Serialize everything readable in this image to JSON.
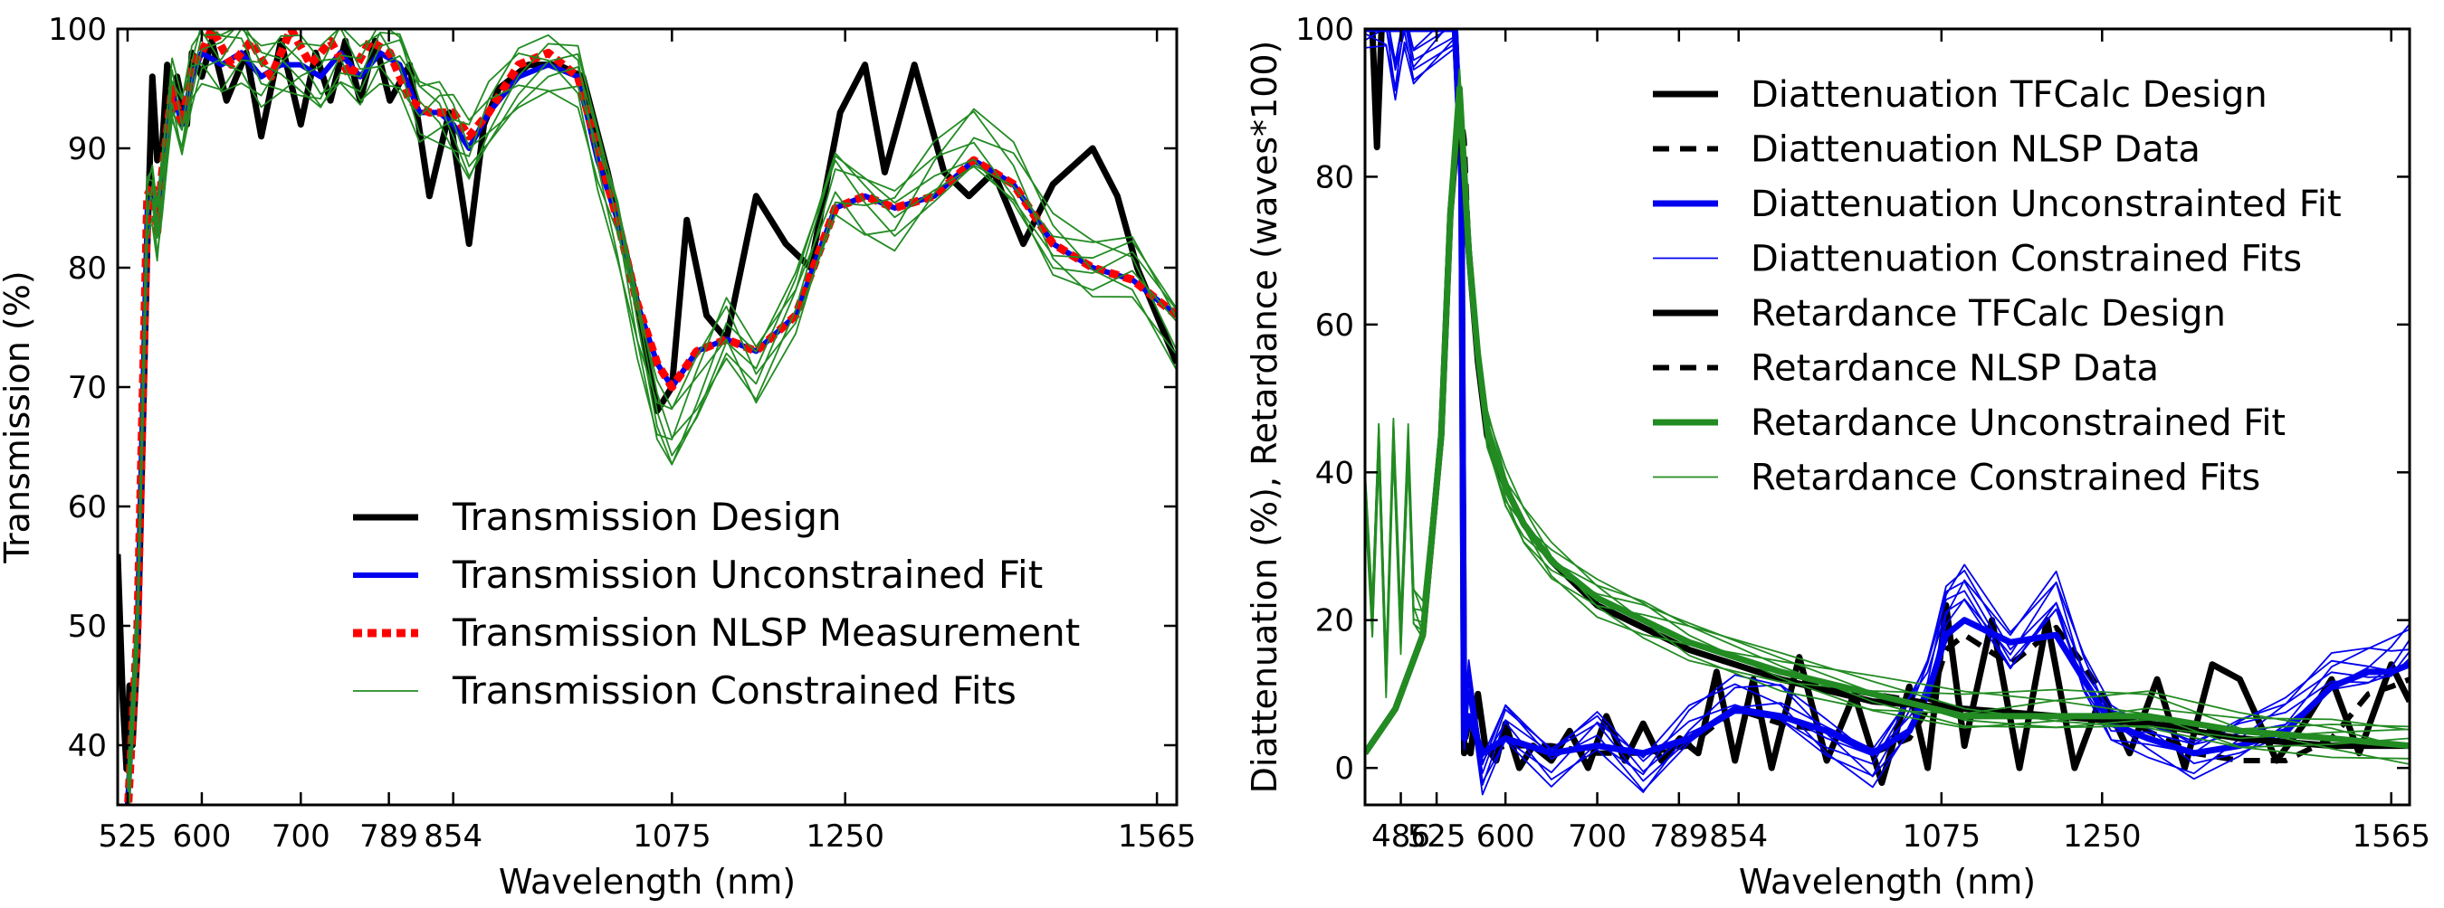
{
  "chart_data": [
    {
      "type": "line",
      "ylabel": "Transmission  (%)",
      "xlabel": "Wavelength (nm)",
      "ylim": [
        35,
        100
      ],
      "xlim": [
        515,
        1585
      ],
      "xticks": [
        "525",
        "600",
        "700",
        "789",
        "854",
        "1075",
        "1250",
        "1565"
      ],
      "xtick_values": [
        525,
        600,
        700,
        789,
        854,
        1075,
        1250,
        1565
      ],
      "yticks": [
        40,
        50,
        60,
        70,
        80,
        90,
        100
      ],
      "legend_position": "lower-center",
      "series": [
        {
          "name": "Transmission Design",
          "color": "#000000",
          "style": "solid-thick",
          "x": [
            515,
            520,
            524,
            527,
            530,
            535,
            545,
            550,
            555,
            560,
            565,
            570,
            575,
            585,
            590,
            600,
            610,
            625,
            645,
            660,
            680,
            700,
            715,
            730,
            745,
            760,
            775,
            790,
            810,
            830,
            850,
            870,
            885,
            900,
            930,
            960,
            985,
            1010,
            1040,
            1060,
            1075,
            1090,
            1110,
            1130,
            1160,
            1190,
            1215,
            1245,
            1270,
            1290,
            1320,
            1350,
            1375,
            1400,
            1430,
            1460,
            1500,
            1525,
            1545,
            1565,
            1585
          ],
          "y": [
            56,
            44,
            38,
            45,
            40,
            48,
            82,
            96,
            89,
            90,
            97,
            93,
            96,
            92,
            98,
            96,
            99,
            94,
            98,
            91,
            99,
            92,
            98,
            94,
            99,
            94,
            99,
            94,
            97,
            86,
            93,
            82,
            92,
            95,
            97,
            97,
            96,
            88,
            77,
            68,
            70,
            84,
            76,
            74,
            86,
            82,
            80,
            93,
            97,
            88,
            97,
            88,
            86,
            88,
            82,
            87,
            90,
            86,
            80,
            76,
            72
          ]
        },
        {
          "name": "Transmission Unconstrained Fit",
          "color": "#0000ee",
          "style": "solid-medium",
          "x": [
            525,
            535,
            545,
            550,
            555,
            560,
            570,
            580,
            590,
            600,
            620,
            640,
            660,
            680,
            700,
            720,
            740,
            760,
            780,
            800,
            820,
            840,
            854,
            870,
            890,
            920,
            950,
            980,
            1000,
            1020,
            1040,
            1060,
            1075,
            1100,
            1130,
            1160,
            1200,
            1240,
            1270,
            1300,
            1340,
            1380,
            1420,
            1460,
            1500,
            1540,
            1585
          ],
          "y": [
            35,
            50,
            85,
            86,
            84,
            88,
            95,
            92,
            96,
            98,
            97,
            98,
            96,
            97,
            97,
            96,
            98,
            96,
            98,
            97,
            93,
            93,
            92,
            90,
            93,
            96,
            97,
            96,
            89,
            84,
            77,
            72,
            70,
            73,
            74,
            73,
            76,
            85,
            86,
            85,
            86,
            89,
            87,
            82,
            80,
            79,
            76
          ]
        },
        {
          "name": "Transmission NLSP Measurement",
          "color": "#ff0000",
          "style": "dotted-thick",
          "x": [
            525,
            535,
            545,
            550,
            555,
            560,
            570,
            580,
            590,
            600,
            610,
            630,
            650,
            670,
            690,
            710,
            730,
            750,
            770,
            790,
            810,
            830,
            854,
            870,
            890,
            920,
            950,
            980,
            1000,
            1020,
            1040,
            1060,
            1075,
            1100,
            1130,
            1160,
            1200,
            1240,
            1270,
            1300,
            1340,
            1380,
            1420,
            1460,
            1500,
            1540,
            1585
          ],
          "y": [
            34,
            50,
            86,
            87,
            83,
            88,
            95,
            92,
            97,
            98,
            100,
            97,
            99,
            96,
            100,
            97,
            99,
            96,
            99,
            98,
            94,
            93,
            93,
            91,
            93,
            97,
            98,
            96,
            90,
            84,
            77,
            72,
            70,
            73,
            74,
            73,
            76,
            85,
            86,
            85,
            86,
            89,
            87,
            82,
            80,
            79,
            76
          ]
        },
        {
          "name": "Transmission Constrained Fits",
          "color": "#228b22",
          "style": "solid-thin",
          "count": 7,
          "x": [
            525,
            535,
            545,
            550,
            555,
            560,
            570,
            580,
            590,
            600,
            620,
            640,
            660,
            680,
            700,
            720,
            740,
            760,
            780,
            800,
            820,
            840,
            854,
            870,
            890,
            920,
            950,
            980,
            1000,
            1020,
            1040,
            1060,
            1075,
            1100,
            1130,
            1160,
            1200,
            1240,
            1270,
            1300,
            1340,
            1380,
            1420,
            1460,
            1500,
            1540,
            1585
          ],
          "y": [
            35,
            50,
            85,
            86,
            83,
            87,
            95,
            92,
            96,
            98,
            97,
            98,
            96,
            97,
            97,
            96,
            98,
            96,
            98,
            97,
            93,
            93,
            92,
            90,
            93,
            96,
            97,
            96,
            89,
            83,
            75,
            68,
            66,
            70,
            75,
            71,
            77,
            87,
            85,
            84,
            88,
            91,
            88,
            82,
            80,
            80,
            74
          ]
        }
      ]
    },
    {
      "type": "line",
      "ylabel": "Diattenuation (%), Retardance (waves*100)",
      "xlabel": "Wavelength (nm)",
      "ylim": [
        -5,
        100
      ],
      "xlim": [
        447,
        1585
      ],
      "xticks": [
        "486",
        "525",
        "600",
        "700",
        "789",
        "854",
        "1075",
        "1250",
        "1565"
      ],
      "xtick_values": [
        486,
        525,
        600,
        700,
        789,
        854,
        1075,
        1250,
        1565
      ],
      "yticks": [
        0,
        20,
        40,
        60,
        80,
        100
      ],
      "legend_position": "upper-right",
      "series": [
        {
          "name": "Diattenuation TFCalc Design",
          "color": "#000000",
          "style": "solid-thick",
          "x": [
            447,
            455,
            460,
            465,
            470,
            500,
            530,
            545,
            552,
            555,
            558,
            562,
            570,
            578,
            590,
            600,
            615,
            630,
            650,
            670,
            690,
            710,
            730,
            750,
            770,
            790,
            810,
            830,
            850,
            870,
            890,
            920,
            950,
            980,
            1010,
            1040,
            1060,
            1080,
            1100,
            1130,
            1160,
            1190,
            1220,
            1250,
            1280,
            1310,
            1340,
            1370,
            1400,
            1440,
            1470,
            1500,
            1530,
            1565,
            1585
          ],
          "y": [
            100,
            100,
            84,
            100,
            100,
            100,
            100,
            100,
            80,
            2,
            3,
            2,
            10,
            3,
            1,
            6,
            0,
            3,
            1,
            5,
            0,
            7,
            1,
            6,
            1,
            4,
            2,
            13,
            1,
            12,
            0,
            15,
            1,
            10,
            -2,
            11,
            0,
            22,
            3,
            20,
            0,
            20,
            0,
            10,
            2,
            12,
            0,
            14,
            12,
            1,
            6,
            12,
            2,
            14,
            9
          ]
        },
        {
          "name": "Diattenuation NLSP Data",
          "color": "#000000",
          "style": "dashed-thick",
          "x": [
            447,
            545,
            552,
            555,
            560,
            575,
            600,
            650,
            700,
            750,
            800,
            850,
            900,
            950,
            1000,
            1040,
            1060,
            1080,
            1100,
            1150,
            1200,
            1230,
            1260,
            1300,
            1350,
            1400,
            1450,
            1500,
            1540,
            1565,
            1585
          ],
          "y": [
            100,
            100,
            80,
            3,
            6,
            2,
            3,
            3,
            2,
            2,
            3,
            8,
            6,
            5,
            2,
            4,
            8,
            16,
            18,
            14,
            19,
            14,
            8,
            5,
            2,
            1,
            1,
            4,
            10,
            11,
            12
          ]
        },
        {
          "name": "Diattenuation Unconstrainted Fit",
          "color": "#0000ee",
          "style": "solid-thick",
          "x": [
            447,
            545,
            552,
            555,
            560,
            575,
            600,
            650,
            700,
            750,
            800,
            850,
            900,
            950,
            1000,
            1040,
            1060,
            1080,
            1100,
            1150,
            1200,
            1230,
            1260,
            1300,
            1350,
            1400,
            1450,
            1500,
            1540,
            1565,
            1585
          ],
          "y": [
            100,
            100,
            80,
            4,
            7,
            2,
            4,
            2,
            3,
            2,
            4,
            8,
            7,
            5,
            2,
            5,
            10,
            18,
            20,
            17,
            18,
            12,
            6,
            4,
            2,
            3,
            5,
            11,
            13,
            13,
            14
          ]
        },
        {
          "name": "Diattenuation Constrained Fits",
          "color": "#0000ee",
          "style": "solid-thin",
          "count": 7,
          "x": [
            447,
            470,
            480,
            490,
            500,
            545,
            552,
            555,
            560,
            575,
            600,
            650,
            700,
            750,
            800,
            850,
            900,
            950,
            1000,
            1040,
            1060,
            1080,
            1100,
            1150,
            1200,
            1230,
            1260,
            1300,
            1350,
            1400,
            1450,
            1500,
            1540,
            1565,
            1585
          ],
          "y": [
            100,
            100,
            93,
            100,
            95,
            100,
            80,
            5,
            12,
            -1,
            6,
            0,
            5,
            -1,
            6,
            10,
            9,
            4,
            0,
            7,
            12,
            22,
            25,
            16,
            24,
            13,
            6,
            4,
            1,
            4,
            7,
            13,
            14,
            15,
            17
          ]
        },
        {
          "name": "Retardance TFCalc Design",
          "color": "#000000",
          "style": "solid-thick",
          "x": [
            447,
            480,
            510,
            530,
            540,
            550,
            560,
            570,
            580,
            600,
            620,
            650,
            700,
            750,
            800,
            900,
            1000,
            1100,
            1200,
            1300,
            1400,
            1500,
            1585
          ],
          "y": [
            2,
            8,
            18,
            45,
            75,
            90,
            70,
            55,
            45,
            38,
            33,
            28,
            22,
            19,
            16,
            12,
            9,
            8,
            7,
            6,
            4,
            3,
            3
          ]
        },
        {
          "name": "Retardance NLSP Data",
          "color": "#000000",
          "style": "dashed-thick",
          "x": [
            550,
            555,
            560,
            570,
            580,
            600,
            620,
            650,
            700,
            750,
            800,
            900,
            1000,
            1100,
            1200,
            1300,
            1400,
            1500,
            1585
          ],
          "y": [
            90,
            85,
            70,
            55,
            46,
            38,
            33,
            28,
            22,
            19,
            16,
            12,
            10,
            8,
            7,
            6,
            5,
            4,
            3
          ]
        },
        {
          "name": "Retardance Unconstrained Fit",
          "color": "#228b22",
          "style": "solid-thick",
          "x": [
            447,
            480,
            510,
            530,
            540,
            550,
            560,
            570,
            580,
            600,
            620,
            650,
            700,
            750,
            800,
            900,
            1000,
            1100,
            1200,
            1300,
            1400,
            1500,
            1585
          ],
          "y": [
            2,
            8,
            18,
            45,
            75,
            92,
            70,
            56,
            46,
            38,
            33,
            28,
            23,
            20,
            17,
            13,
            10,
            7,
            7,
            7,
            5,
            4,
            3
          ]
        },
        {
          "name": "Retardance Constrained Fits",
          "color": "#228b22",
          "style": "solid-thin",
          "count": 7,
          "x": [
            447,
            455,
            462,
            470,
            478,
            486,
            494,
            500,
            510,
            530,
            540,
            550,
            560,
            570,
            580,
            600,
            620,
            650,
            700,
            750,
            800,
            900,
            1000,
            1100,
            1200,
            1300,
            1400,
            1500,
            1585
          ],
          "y": [
            38,
            20,
            44,
            12,
            45,
            18,
            44,
            22,
            20,
            45,
            75,
            92,
            70,
            56,
            46,
            38,
            33,
            28,
            23,
            20,
            17,
            13,
            10,
            8,
            8,
            8,
            5,
            4,
            3
          ]
        }
      ]
    }
  ]
}
